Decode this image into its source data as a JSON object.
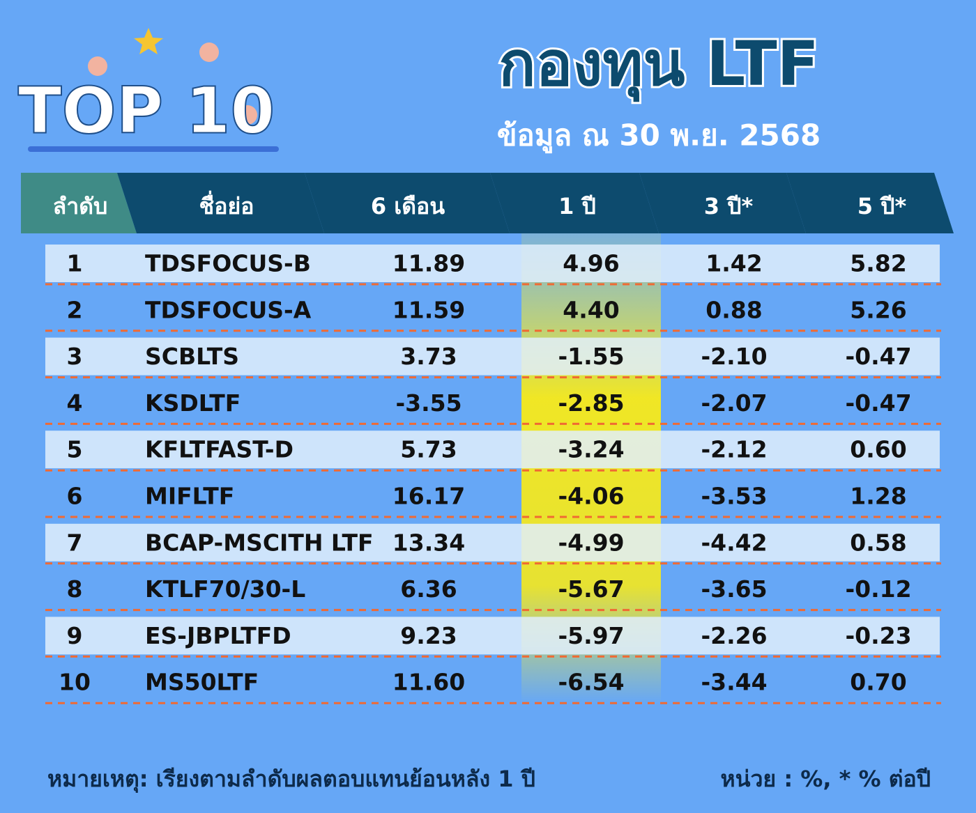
{
  "header": {
    "badge": "TOP 10",
    "title": "กองทุน LTF",
    "subtitle": "ข้อมูล ณ 30 พ.ย. 2568"
  },
  "table": {
    "columns": [
      "ลำดับ",
      "ชื่อย่อ",
      "6 เดือน",
      "1 ปี",
      "3 ปี*",
      "5 ปี*"
    ],
    "rows": [
      [
        "1",
        "TDSFOCUS-B",
        "11.89",
        "4.96",
        "1.42",
        "5.82"
      ],
      [
        "2",
        "TDSFOCUS-A",
        "11.59",
        "4.40",
        "0.88",
        "5.26"
      ],
      [
        "3",
        "SCBLTS",
        "3.73",
        "-1.55",
        "-2.10",
        "-0.47"
      ],
      [
        "4",
        "KSDLTF",
        "-3.55",
        "-2.85",
        "-2.07",
        "-0.47"
      ],
      [
        "5",
        "KFLTFAST-D",
        "5.73",
        "-3.24",
        "-2.12",
        "0.60"
      ],
      [
        "6",
        "MIFLTF",
        "16.17",
        "-4.06",
        "-3.53",
        "1.28"
      ],
      [
        "7",
        "BCAP-MSCITH LTF",
        "13.34",
        "-4.99",
        "-4.42",
        "0.58"
      ],
      [
        "8",
        "KTLF70/30-L",
        "6.36",
        "-5.67",
        "-3.65",
        "-0.12"
      ],
      [
        "9",
        "ES-JBPLTFD",
        "9.23",
        "-5.97",
        "-2.26",
        "-0.23"
      ],
      [
        "10",
        "MS50LTF",
        "11.60",
        "-6.54",
        "-3.44",
        "0.70"
      ]
    ]
  },
  "footer": {
    "note": "หมายเหตุ: เรียงตามลำดับผลตอบแทนย้อนหลัง 1 ปี",
    "unit": "หน่วย : %, * % ต่อปี"
  }
}
